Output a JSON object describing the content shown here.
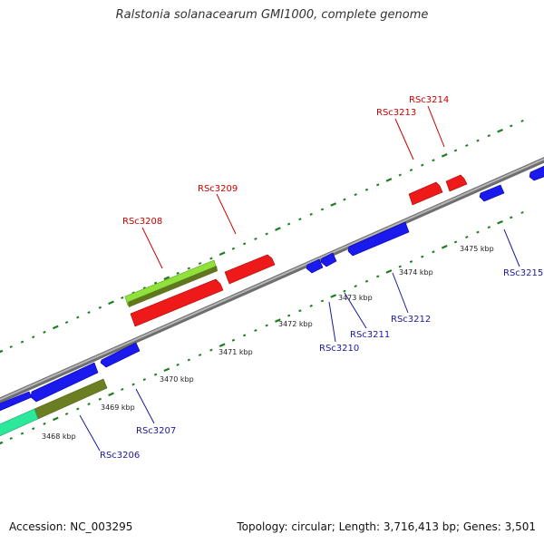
{
  "title": "Ralstonia solanacearum GMI1000, complete genome",
  "footer": {
    "accession": "Accession: NC_003295",
    "summary": "Topology: circular; Length: 3,716,413 bp; Genes: 3,501"
  },
  "colors": {
    "background": "#ffffff",
    "backbone": "#8c8c8c",
    "tick": "#1e7d1e",
    "reverse_strand_gene": "#1a1aee",
    "forward_strand_gene": "#ee1a1a",
    "label_forward": "#cc0000",
    "label_reverse": "#1a1a99",
    "track_lightgreen": "#8ee23a",
    "track_olive": "#6b7f22",
    "track_aqua": "#2be89a"
  },
  "ticks": [
    "3468 kbp",
    "3469 kbp",
    "3470 kbp",
    "3471 kbp",
    "3472 kbp",
    "3473 kbp",
    "3474 kbp",
    "3475 kbp"
  ],
  "genes_forward": [
    "RSc3208",
    "RSc3209",
    "RSc3213",
    "RSc3214"
  ],
  "genes_reverse": [
    "RSc3206",
    "RSc3207",
    "RSc3210",
    "RSc3211",
    "RSc3212",
    "RSc3215"
  ]
}
